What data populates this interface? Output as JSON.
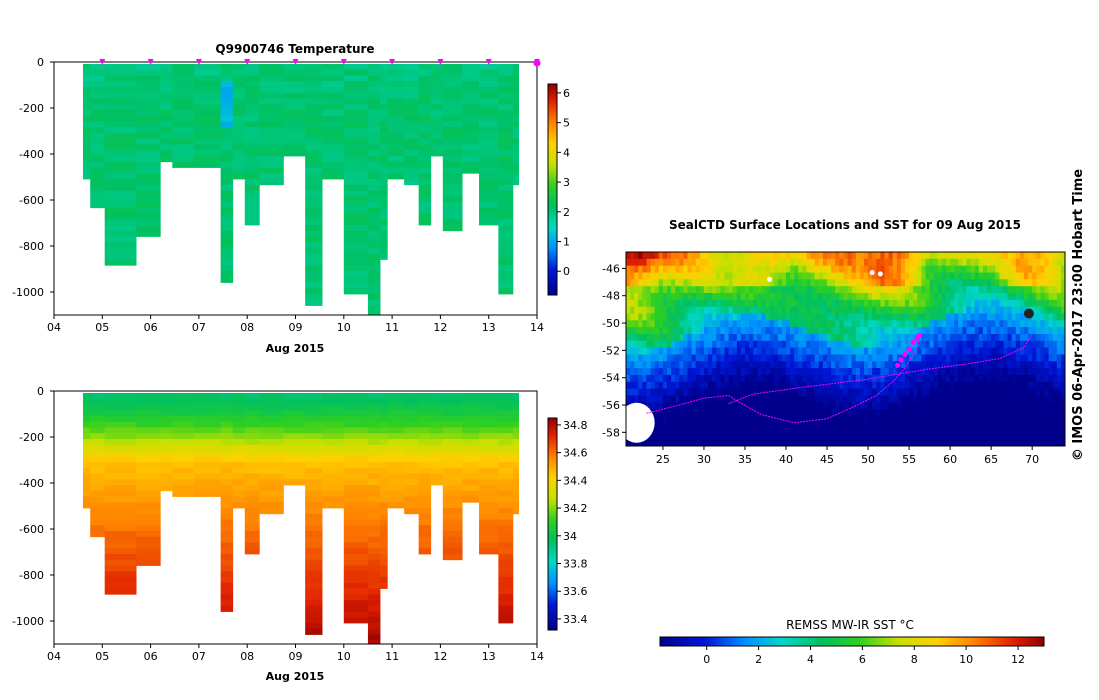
{
  "chart_data": [
    {
      "type": "heatmap",
      "panel": "temperature-section",
      "title": "Q9900746  Temperature",
      "xlabel": "Aug 2015",
      "ylabel": "",
      "x_ticks": [
        "04",
        "05",
        "06",
        "07",
        "08",
        "09",
        "10",
        "11",
        "12",
        "13",
        "14"
      ],
      "xlim": [
        4,
        14
      ],
      "y_ticks": [
        0,
        -200,
        -400,
        -600,
        -800,
        -1000
      ],
      "ylim": [
        -1100,
        0
      ],
      "colorbar": {
        "ticks": [
          0,
          1,
          2,
          3,
          4,
          5,
          6
        ],
        "range": [
          -0.8,
          6.3
        ]
      },
      "profile_markers_day": [
        5,
        6,
        7,
        8,
        9,
        10,
        11,
        12,
        13,
        14
      ],
      "profiles": [
        {
          "day": 4.6,
          "depth": 500
        },
        {
          "day": 4.75,
          "depth": 620
        },
        {
          "day": 5.05,
          "depth": 860
        },
        {
          "day": 5.7,
          "depth": 730
        },
        {
          "day": 6.2,
          "depth": 410
        },
        {
          "day": 6.45,
          "depth": 440
        },
        {
          "day": 6.9,
          "depth": 450
        },
        {
          "day": 7.45,
          "depth": 950
        },
        {
          "day": 7.7,
          "depth": 500
        },
        {
          "day": 7.95,
          "depth": 680
        },
        {
          "day": 8.25,
          "depth": 510
        },
        {
          "day": 8.75,
          "depth": 400
        },
        {
          "day": 9.2,
          "depth": 1030
        },
        {
          "day": 9.55,
          "depth": 500
        },
        {
          "day": 10.0,
          "depth": 1000
        },
        {
          "day": 10.5,
          "depth": 1100
        },
        {
          "day": 10.75,
          "depth": 840
        },
        {
          "day": 10.9,
          "depth": 480
        },
        {
          "day": 11.25,
          "depth": 520
        },
        {
          "day": 11.55,
          "depth": 680
        },
        {
          "day": 11.8,
          "depth": 400
        },
        {
          "day": 12.05,
          "depth": 710
        },
        {
          "day": 12.45,
          "depth": 470
        },
        {
          "day": 12.8,
          "depth": 700
        },
        {
          "day": 13.2,
          "depth": 1000
        },
        {
          "day": 13.5,
          "depth": 510
        }
      ],
      "value_model": {
        "surface": 2.0,
        "at_200m": 2.1,
        "deep": 2.1,
        "warm_patch": {
          "day_from": 7.0,
          "day_to": 7.5,
          "depth_from": 80,
          "depth_to": 280,
          "value": 1.1
        }
      }
    },
    {
      "type": "heatmap",
      "panel": "salinity-section",
      "title": "",
      "xlabel": "Aug 2015",
      "ylabel": "",
      "x_ticks": [
        "04",
        "05",
        "06",
        "07",
        "08",
        "09",
        "10",
        "11",
        "12",
        "13",
        "14"
      ],
      "xlim": [
        4,
        14
      ],
      "y_ticks": [
        0,
        -200,
        -400,
        -600,
        -800,
        -1000
      ],
      "ylim": [
        -1100,
        0
      ],
      "colorbar": {
        "ticks": [
          "33.4",
          "33.6",
          "33.8",
          "34",
          "34.2",
          "34.4",
          "34.6",
          "34.8"
        ],
        "range": [
          33.32,
          34.85
        ]
      },
      "value_model": {
        "surface": 33.95,
        "at_300m": 34.45,
        "at_600m": 34.6,
        "at_1000m": 34.78
      }
    },
    {
      "type": "heatmap",
      "panel": "sst-map",
      "title": "SealCTD Surface Locations and SST for 09 Aug 2015",
      "xlabel": "",
      "ylabel": "",
      "x_ticks": [
        "25",
        "30",
        "35",
        "40",
        "45",
        "50",
        "55",
        "60",
        "65",
        "70"
      ],
      "xlim": [
        20.5,
        74
      ],
      "y_ticks": [
        "-46",
        "-48",
        "-50",
        "-52",
        "-54",
        "-56",
        "-58"
      ],
      "ylim": [
        -59,
        -44.8
      ],
      "colorbar": {
        "label": "REMSS MW-IR SST °C",
        "ticks": [
          0,
          2,
          4,
          6,
          8,
          10,
          12
        ],
        "range": [
          -1.8,
          13
        ]
      },
      "track": [
        [
          23,
          -56.6
        ],
        [
          27,
          -56.0
        ],
        [
          30,
          -55.5
        ],
        [
          33,
          -55.3
        ],
        [
          34,
          -55.7
        ],
        [
          37,
          -56.7
        ],
        [
          41,
          -57.3
        ],
        [
          45,
          -57.0
        ],
        [
          48,
          -56.2
        ],
        [
          51,
          -55.3
        ],
        [
          53,
          -54.3
        ],
        [
          54.5,
          -53.3
        ],
        [
          56,
          -51.8
        ],
        [
          56.3,
          -51.0
        ]
      ],
      "track_return": [
        [
          33,
          -55.9
        ],
        [
          36,
          -55.2
        ],
        [
          42,
          -54.7
        ],
        [
          50,
          -54.1
        ],
        [
          57,
          -53.4
        ],
        [
          62,
          -53.0
        ],
        [
          66,
          -52.6
        ],
        [
          69,
          -51.8
        ],
        [
          70,
          -50.8
        ]
      ],
      "surface_locations": [
        [
          54.0,
          -52.7
        ],
        [
          54.5,
          -52.3
        ],
        [
          55.0,
          -51.9
        ],
        [
          55.5,
          -51.4
        ],
        [
          56.0,
          -51.1
        ],
        [
          56.3,
          -50.9
        ],
        [
          53.6,
          -53.1
        ]
      ]
    }
  ],
  "side_label": "© IMOS 06-Apr-2017 23:00 Hobart Time",
  "colors": {
    "track": "#ff00ff",
    "marker": "#ff00ff",
    "land": "#ffffff",
    "axis": "#000000"
  }
}
